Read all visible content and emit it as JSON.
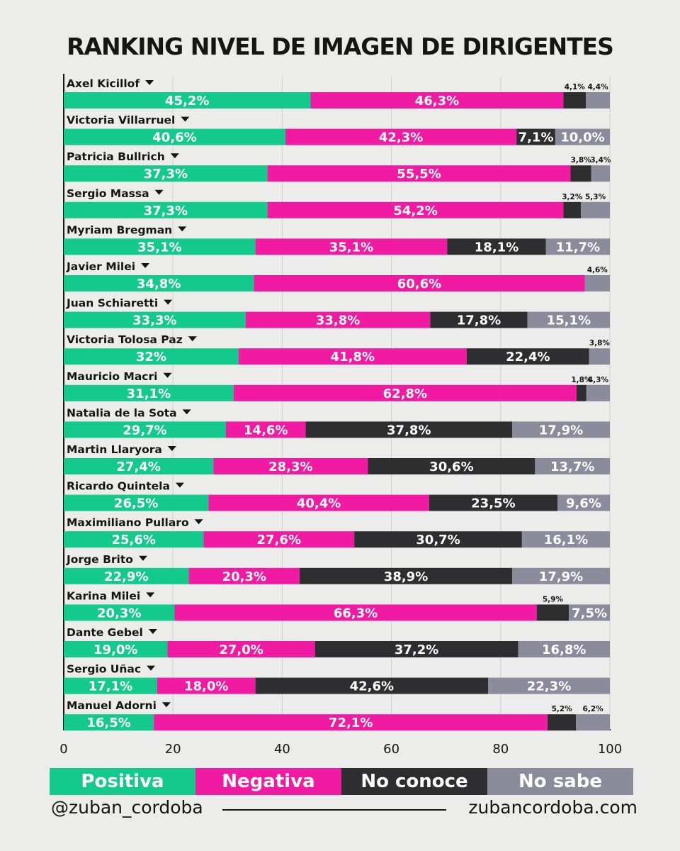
{
  "title": "RANKING NIVEL DE IMAGEN DE DIRIGENTES",
  "colors": {
    "positiva": "#14c98c",
    "negativa": "#f01aa3",
    "no_conoce": "#2e2e31",
    "no_sabe": "#8a8b9b"
  },
  "legend": [
    {
      "label": "Positiva",
      "color": "#14c98c"
    },
    {
      "label": "Negativa",
      "color": "#f01aa3"
    },
    {
      "label": "No conoce",
      "color": "#2e2e31"
    },
    {
      "label": "No sabe",
      "color": "#8a8b9b"
    }
  ],
  "footer": {
    "left": "@zuban_cordoba",
    "right": "zubancordoba.com"
  },
  "chart_data": {
    "type": "bar",
    "stacked": true,
    "orientation": "horizontal",
    "title": "RANKING NIVEL DE IMAGEN DE DIRIGENTES",
    "xlim": [
      0,
      100
    ],
    "xticks": [
      "0",
      "20",
      "40",
      "60",
      "80",
      "100"
    ],
    "categories": [
      "Axel Kicillof",
      "Victoria Villarruel",
      "Patricia Bullrich",
      "Sergio Massa",
      "Myriam Bregman",
      "Javier Milei",
      "Juan Schiaretti",
      "Victoria Tolosa Paz",
      "Mauricio Macri",
      "Natalia de la Sota",
      "Martin Llaryora",
      "Ricardo Quintela",
      "Maximiliano Pullaro",
      "Jorge Brito",
      "Karina Milei",
      "Dante Gebel",
      "Sergio Uñac",
      "Manuel Adorni"
    ],
    "series": [
      {
        "name": "Positiva",
        "values": [
          45.2,
          40.6,
          37.3,
          37.3,
          35.1,
          34.8,
          33.3,
          32,
          31.1,
          29.7,
          27.4,
          26.5,
          25.6,
          22.9,
          20.3,
          19.0,
          17.1,
          16.5
        ],
        "labels": [
          "45,2%",
          "40,6%",
          "37,3%",
          "37,3%",
          "35,1%",
          "34,8%",
          "33,3%",
          "32%",
          "31,1%",
          "29,7%",
          "27,4%",
          "26,5%",
          "25,6%",
          "22,9%",
          "20,3%",
          "19,0%",
          "17,1%",
          "16,5%"
        ]
      },
      {
        "name": "Negativa",
        "values": [
          46.3,
          42.3,
          55.5,
          54.2,
          35.1,
          60.6,
          33.8,
          41.8,
          62.8,
          14.6,
          28.3,
          40.4,
          27.6,
          20.3,
          66.3,
          27.0,
          18.0,
          72.1
        ],
        "labels": [
          "46,3%",
          "42,3%",
          "55,5%",
          "54,2%",
          "35,1%",
          "60,6%",
          "33,8%",
          "41,8%",
          "62,8%",
          "14,6%",
          "28,3%",
          "40,4%",
          "27,6%",
          "20,3%",
          "66,3%",
          "27,0%",
          "18,0%",
          "72,1%"
        ]
      },
      {
        "name": "No conoce",
        "values": [
          4.1,
          7.1,
          3.8,
          3.2,
          18.1,
          0,
          17.8,
          22.4,
          1.8,
          37.8,
          30.6,
          23.5,
          30.7,
          38.9,
          5.9,
          37.2,
          42.6,
          5.2
        ],
        "labels": [
          "4,1%",
          "7,1%",
          "3,8%",
          "3,2%",
          "18,1%",
          "",
          "17,8%",
          "22,4%",
          "1,8%",
          "37,8%",
          "30,6%",
          "23,5%",
          "30,7%",
          "38,9%",
          "5,9%",
          "37,2%",
          "42,6%",
          "5,2%"
        ]
      },
      {
        "name": "No sabe",
        "values": [
          4.4,
          10.0,
          3.4,
          5.3,
          11.7,
          4.6,
          15.1,
          3.8,
          4.3,
          17.9,
          13.7,
          9.6,
          16.1,
          17.9,
          7.5,
          16.8,
          22.3,
          6.2
        ],
        "labels": [
          "4,4%",
          "10,0%",
          "3,4%",
          "5,3%",
          "11,7%",
          "4,6%",
          "15,1%",
          "3,8%",
          "4,3%",
          "17,9%",
          "13,7%",
          "9,6%",
          "16,1%",
          "17,9%",
          "7,5%",
          "16,8%",
          "22,3%",
          "6,2%"
        ]
      }
    ]
  }
}
